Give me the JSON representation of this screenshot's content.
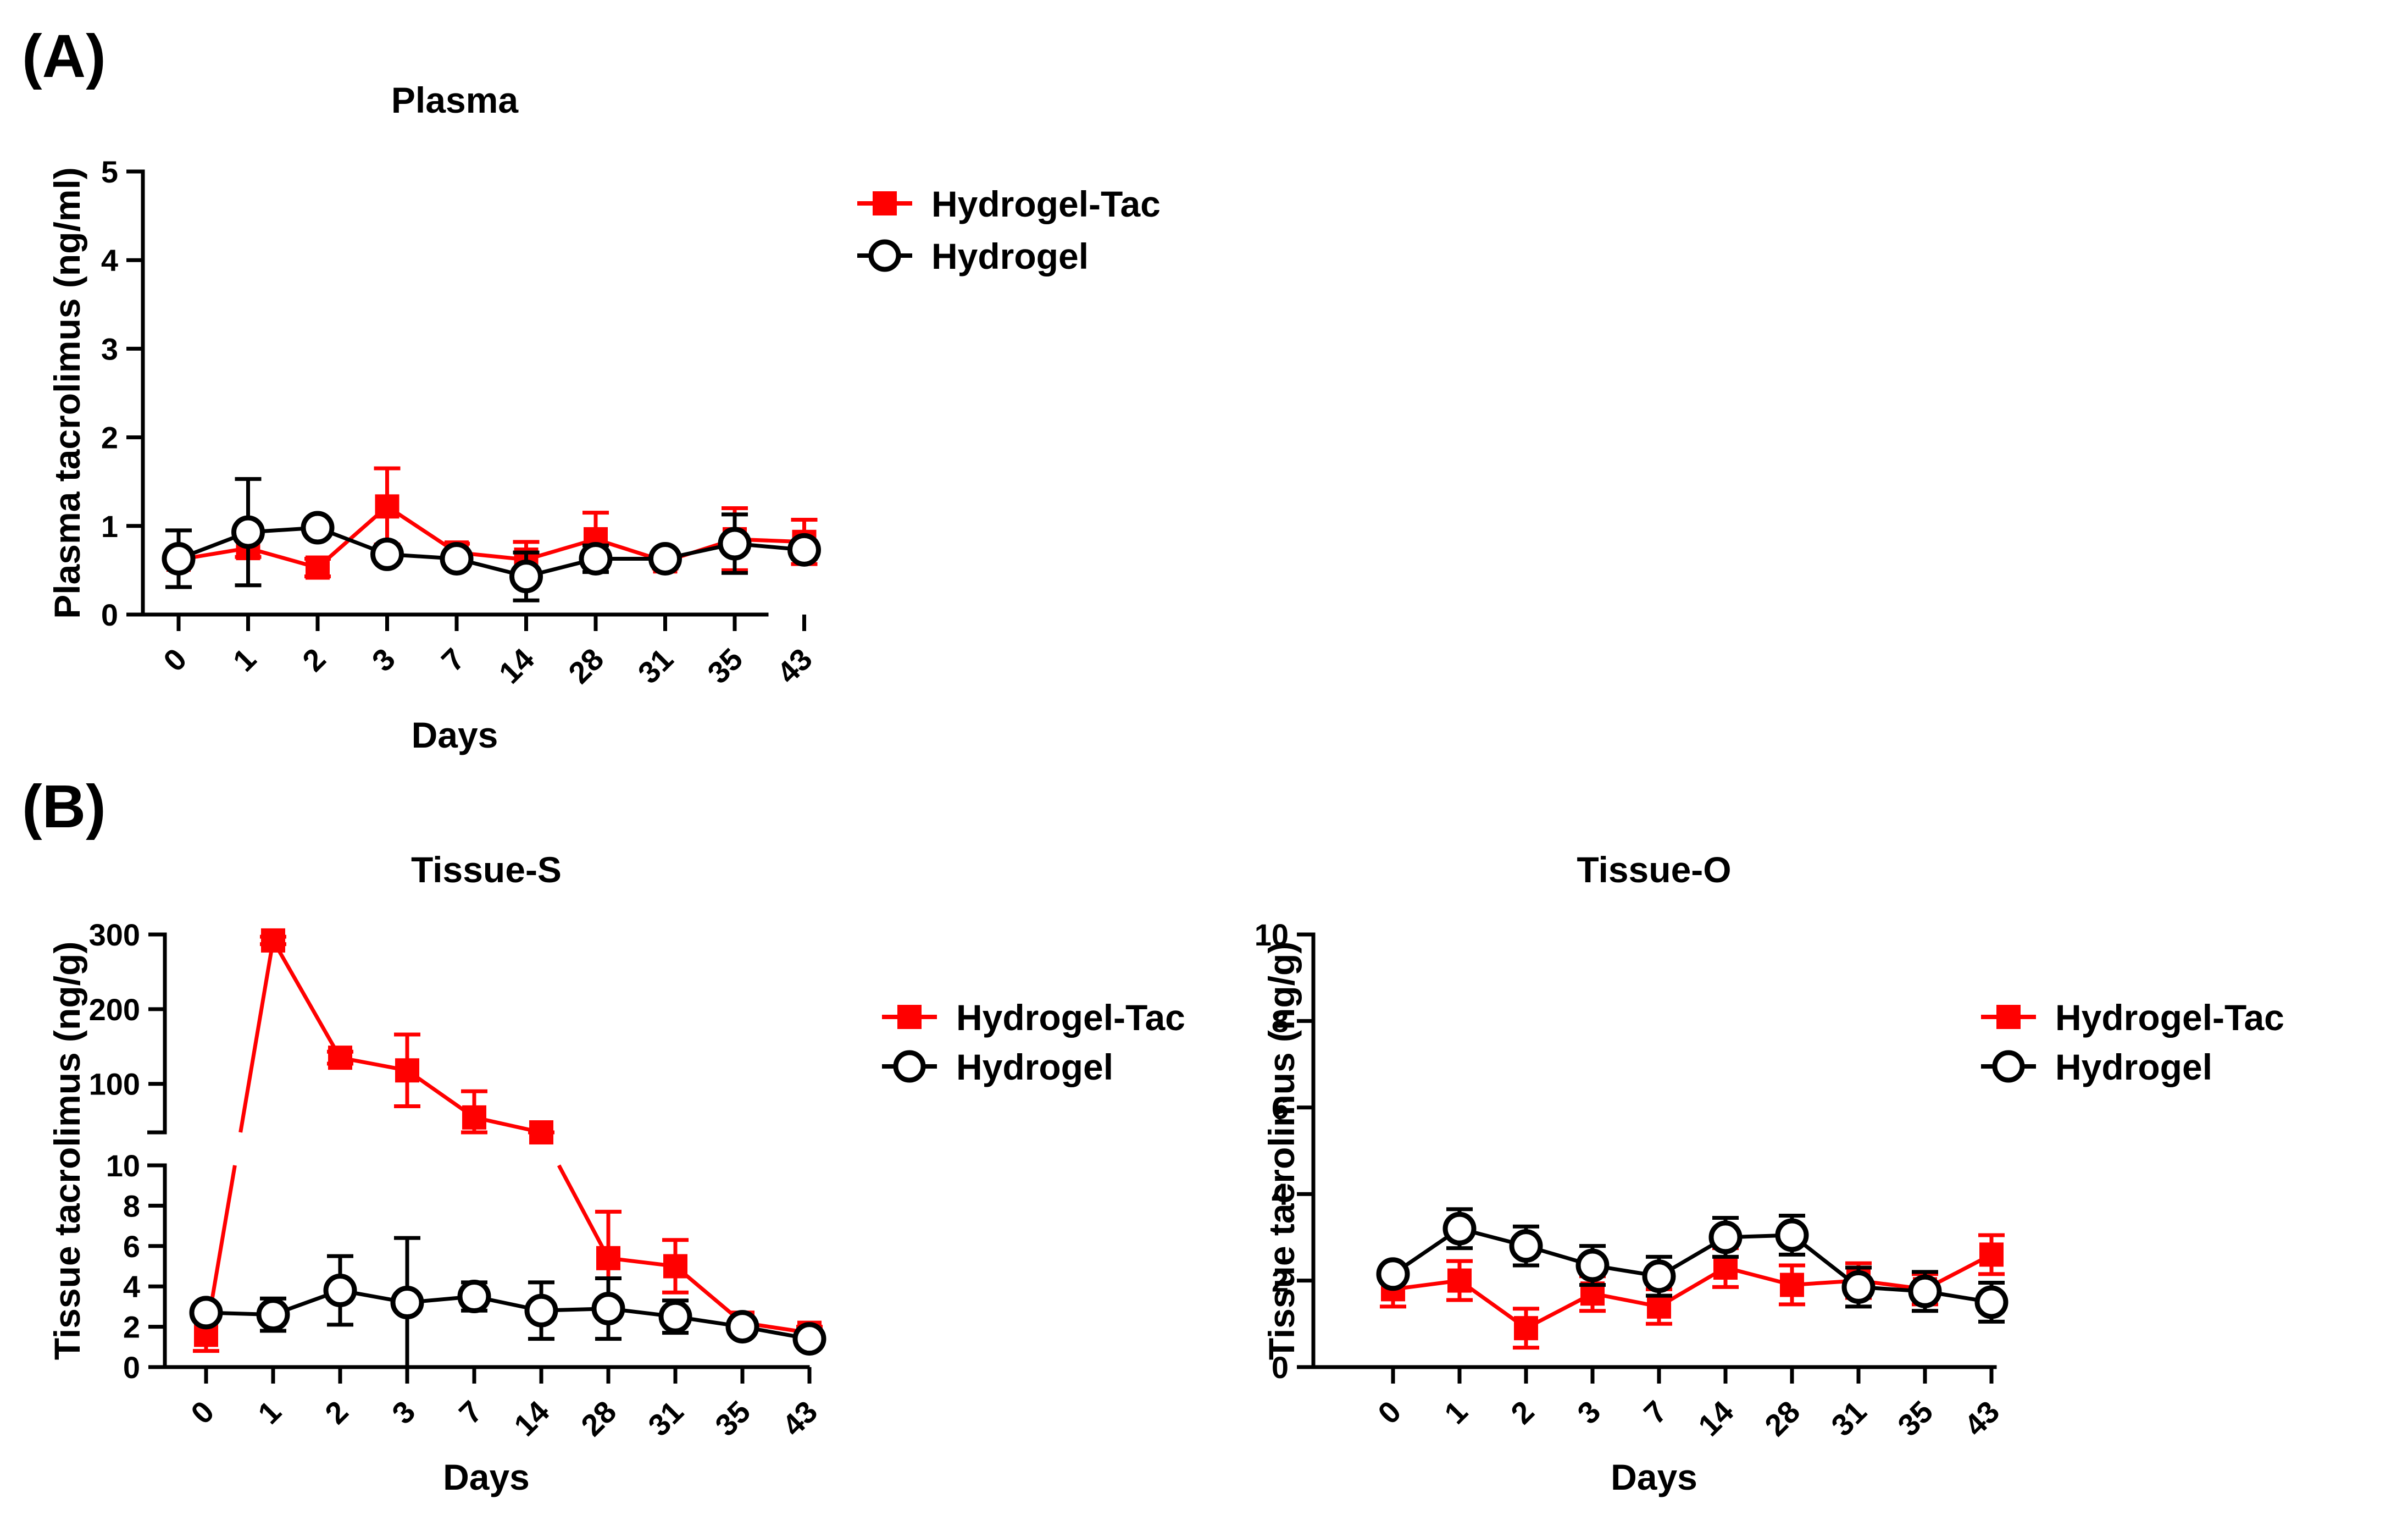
{
  "panels": {
    "a_label": "(A)",
    "b_label": "(B)"
  },
  "legend": {
    "tac": "Hydrogel-Tac",
    "gel": "Hydrogel"
  },
  "colors": {
    "tac": "#ff0000",
    "gel": "#000000",
    "gel_fill": "#ffffff"
  },
  "chart_data": [
    {
      "id": "plasma",
      "type": "line",
      "title": "Plasma",
      "xlabel": "Days",
      "ylabel": "Plasma tacrolimus (ng/ml)",
      "categories": [
        "0",
        "1",
        "2",
        "3",
        "7",
        "14",
        "28",
        "31",
        "35",
        "43"
      ],
      "ylim": [
        0,
        5
      ],
      "yticks": [
        "0",
        "1",
        "2",
        "3",
        "4",
        "5"
      ],
      "series": [
        {
          "name": "Hydrogel-Tac",
          "values": [
            0.62,
            0.75,
            0.53,
            1.22,
            0.7,
            0.62,
            0.85,
            0.6,
            0.85,
            0.82
          ],
          "errors": [
            0.05,
            0.1,
            0.1,
            0.43,
            0.1,
            0.2,
            0.3,
            0.08,
            0.35,
            0.25
          ]
        },
        {
          "name": "Hydrogel",
          "values": [
            0.63,
            0.93,
            0.98,
            0.68,
            0.63,
            0.43,
            0.63,
            0.63,
            0.8,
            0.73
          ],
          "errors": [
            0.32,
            0.6,
            0.05,
            0.05,
            0.05,
            0.27,
            0.15,
            0.05,
            0.33,
            0.1
          ]
        }
      ]
    },
    {
      "id": "tissue-s",
      "type": "line",
      "title": "Tissue-S",
      "xlabel": "Days",
      "ylabel": "Tissue tacrolimus (ng/g)",
      "categories": [
        "0",
        "1",
        "2",
        "3",
        "7",
        "14",
        "28",
        "31",
        "35",
        "43"
      ],
      "ylim": [
        0,
        300
      ],
      "y_axis_break": [
        10,
        35
      ],
      "yticks": [
        "0",
        "2",
        "4",
        "6",
        "8",
        "10",
        "100",
        "200",
        "300"
      ],
      "series": [
        {
          "name": "Hydrogel-Tac",
          "values": [
            1.6,
            292,
            135,
            118,
            55,
            30,
            5.4,
            5.0,
            2.2,
            1.7
          ],
          "errors": [
            0.8,
            5,
            8,
            48,
            35,
            5,
            2.3,
            1.3,
            0.2,
            0.3
          ]
        },
        {
          "name": "Hydrogel",
          "values": [
            2.7,
            2.6,
            3.8,
            3.2,
            3.5,
            2.8,
            2.9,
            2.5,
            2.0,
            1.4
          ],
          "errors": [
            0.3,
            0.8,
            1.7,
            3.2,
            0.7,
            1.4,
            1.5,
            0.8,
            0.3,
            0.4
          ]
        }
      ]
    },
    {
      "id": "tissue-o",
      "type": "line",
      "title": "Tissue-O",
      "xlabel": "Days",
      "ylabel": "Tissue tacrolimus (ng/g)",
      "categories": [
        "0",
        "1",
        "2",
        "3",
        "7",
        "14",
        "28",
        "31",
        "35",
        "43"
      ],
      "ylim": [
        0,
        10
      ],
      "yticks": [
        "0",
        "2",
        "4",
        "6",
        "8",
        "10"
      ],
      "series": [
        {
          "name": "Hydrogel-Tac",
          "values": [
            1.8,
            2.0,
            0.9,
            1.7,
            1.4,
            2.3,
            1.9,
            2.0,
            1.8,
            2.6
          ],
          "errors": [
            0.4,
            0.45,
            0.45,
            0.4,
            0.4,
            0.45,
            0.45,
            0.4,
            0.35,
            0.45
          ]
        },
        {
          "name": "Hydrogel",
          "values": [
            2.15,
            3.2,
            2.8,
            2.35,
            2.1,
            3.0,
            3.05,
            1.85,
            1.75,
            1.5
          ],
          "errors": [
            0.2,
            0.45,
            0.45,
            0.45,
            0.45,
            0.45,
            0.45,
            0.45,
            0.45,
            0.45
          ]
        }
      ]
    }
  ]
}
